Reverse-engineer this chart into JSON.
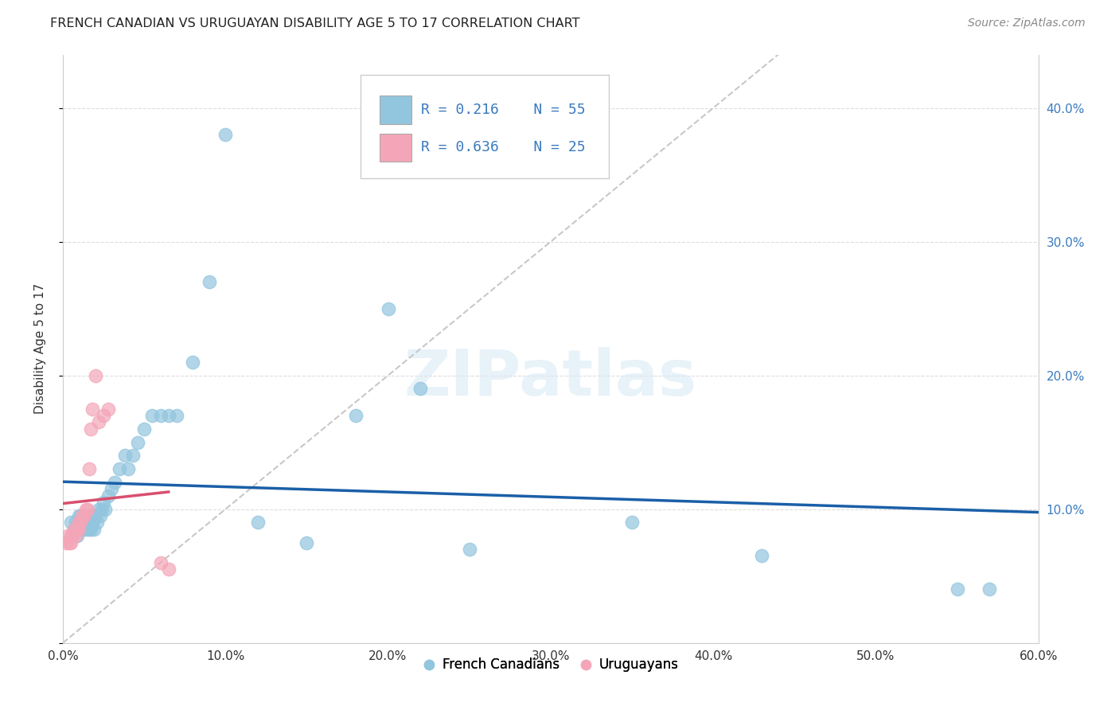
{
  "title": "FRENCH CANADIAN VS URUGUAYAN DISABILITY AGE 5 TO 17 CORRELATION CHART",
  "source": "Source: ZipAtlas.com",
  "ylabel": "Disability Age 5 to 17",
  "xlim": [
    0.0,
    0.6
  ],
  "ylim": [
    0.0,
    0.44
  ],
  "xticks": [
    0.0,
    0.1,
    0.2,
    0.3,
    0.4,
    0.5,
    0.6
  ],
  "xticklabels": [
    "0.0%",
    "10.0%",
    "20.0%",
    "30.0%",
    "40.0%",
    "50.0%",
    "60.0%"
  ],
  "yticks": [
    0.0,
    0.1,
    0.2,
    0.3,
    0.4
  ],
  "yticklabels_right": [
    "",
    "10.0%",
    "20.0%",
    "30.0%",
    "40.0%"
  ],
  "r_blue": "R = 0.216",
  "n_blue": "N = 55",
  "r_pink": "R = 0.636",
  "n_pink": "N = 25",
  "blue_color": "#92c5de",
  "pink_color": "#f4a6b8",
  "blue_line_color": "#1a5fa8",
  "pink_line_color": "#d94f6e",
  "diag_line_color": "#c8c8c8",
  "blue_scatter_x": [
    0.005,
    0.007,
    0.008,
    0.009,
    0.01,
    0.01,
    0.011,
    0.011,
    0.012,
    0.013,
    0.013,
    0.014,
    0.014,
    0.015,
    0.015,
    0.016,
    0.016,
    0.017,
    0.017,
    0.018,
    0.018,
    0.019,
    0.02,
    0.021,
    0.022,
    0.023,
    0.024,
    0.025,
    0.026,
    0.028,
    0.03,
    0.032,
    0.035,
    0.038,
    0.04,
    0.043,
    0.046,
    0.05,
    0.055,
    0.06,
    0.065,
    0.07,
    0.08,
    0.09,
    0.1,
    0.12,
    0.15,
    0.18,
    0.2,
    0.22,
    0.25,
    0.35,
    0.43,
    0.55,
    0.57
  ],
  "blue_scatter_y": [
    0.09,
    0.085,
    0.09,
    0.08,
    0.095,
    0.085,
    0.09,
    0.095,
    0.085,
    0.09,
    0.095,
    0.085,
    0.09,
    0.095,
    0.09,
    0.085,
    0.095,
    0.09,
    0.085,
    0.095,
    0.09,
    0.085,
    0.095,
    0.09,
    0.1,
    0.095,
    0.1,
    0.105,
    0.1,
    0.11,
    0.115,
    0.12,
    0.13,
    0.14,
    0.13,
    0.14,
    0.15,
    0.16,
    0.17,
    0.17,
    0.17,
    0.17,
    0.21,
    0.27,
    0.38,
    0.09,
    0.075,
    0.17,
    0.25,
    0.19,
    0.07,
    0.09,
    0.065,
    0.04,
    0.04
  ],
  "pink_scatter_x": [
    0.002,
    0.003,
    0.004,
    0.005,
    0.005,
    0.006,
    0.007,
    0.008,
    0.009,
    0.01,
    0.01,
    0.011,
    0.012,
    0.013,
    0.014,
    0.015,
    0.016,
    0.017,
    0.018,
    0.02,
    0.022,
    0.025,
    0.028,
    0.06,
    0.065
  ],
  "pink_scatter_y": [
    0.075,
    0.08,
    0.075,
    0.08,
    0.075,
    0.08,
    0.085,
    0.08,
    0.085,
    0.085,
    0.09,
    0.09,
    0.095,
    0.095,
    0.1,
    0.1,
    0.13,
    0.16,
    0.175,
    0.2,
    0.165,
    0.17,
    0.175,
    0.06,
    0.055
  ]
}
